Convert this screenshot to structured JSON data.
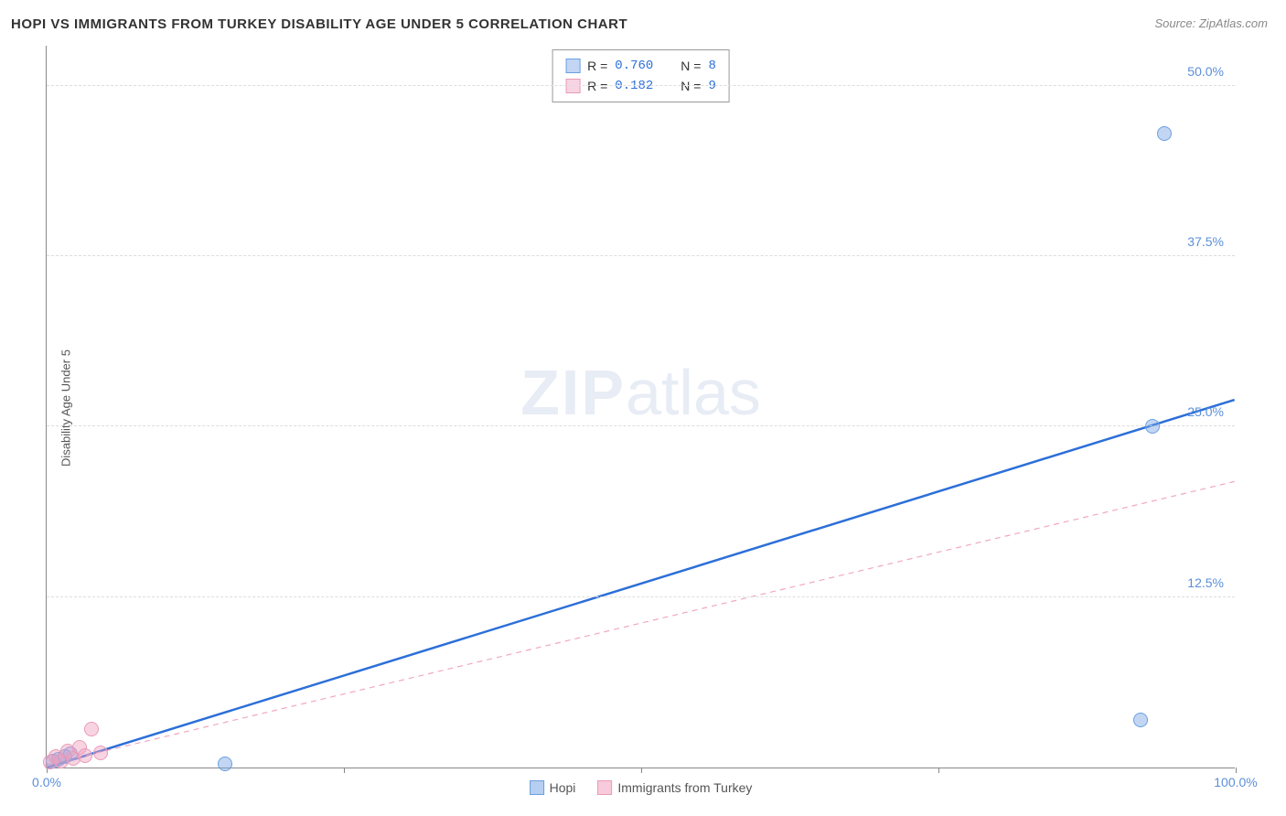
{
  "title": "HOPI VS IMMIGRANTS FROM TURKEY DISABILITY AGE UNDER 5 CORRELATION CHART",
  "source_prefix": "Source: ",
  "source_name": "ZipAtlas.com",
  "ylabel": "Disability Age Under 5",
  "watermark_bold": "ZIP",
  "watermark_light": "atlas",
  "chart": {
    "type": "scatter",
    "xlim": [
      0,
      100
    ],
    "ylim": [
      0,
      53
    ],
    "x_ticks": [
      0,
      25,
      50,
      75,
      100
    ],
    "x_tick_labels": {
      "0": "0.0%",
      "100": "100.0%"
    },
    "y_ticks": [
      12.5,
      25.0,
      37.5,
      50.0
    ],
    "y_tick_labels": [
      "12.5%",
      "25.0%",
      "37.5%",
      "50.0%"
    ],
    "tick_color": "#5b8fd9",
    "grid_color": "#dddddd",
    "background_color": "#ffffff",
    "point_radius": 8,
    "series": [
      {
        "name": "Hopi",
        "color_fill": "rgba(120,165,230,0.45)",
        "color_stroke": "#6b9fe0",
        "r_label": "R = ",
        "r_value": "0.760",
        "n_label": "N = ",
        "n_value": "8",
        "trend": {
          "x1": 0,
          "y1": 0,
          "x2": 100,
          "y2": 27.0,
          "stroke": "#2c6fd8",
          "width": 2.5,
          "dash": ""
        },
        "points": [
          {
            "x": 0.5,
            "y": 0.5
          },
          {
            "x": 1.0,
            "y": 0.6
          },
          {
            "x": 1.5,
            "y": 0.8
          },
          {
            "x": 2.0,
            "y": 1.0
          },
          {
            "x": 15.0,
            "y": 0.3
          },
          {
            "x": 92.0,
            "y": 3.5
          },
          {
            "x": 93.0,
            "y": 25.0
          },
          {
            "x": 94.0,
            "y": 46.5
          }
        ]
      },
      {
        "name": "Immigrants from Turkey",
        "color_fill": "rgba(240,160,190,0.45)",
        "color_stroke": "#e89bb8",
        "r_label": "R = ",
        "r_value": "0.182",
        "n_label": "N = ",
        "n_value": "9",
        "trend": {
          "x1": 0,
          "y1": 0.2,
          "x2": 100,
          "y2": 21.0,
          "stroke": "#f0a8c0",
          "width": 1.2,
          "dash": "6,5"
        },
        "points": [
          {
            "x": 0.3,
            "y": 0.4
          },
          {
            "x": 0.8,
            "y": 0.8
          },
          {
            "x": 1.2,
            "y": 0.5
          },
          {
            "x": 1.8,
            "y": 1.2
          },
          {
            "x": 2.2,
            "y": 0.7
          },
          {
            "x": 2.8,
            "y": 1.5
          },
          {
            "x": 3.2,
            "y": 0.9
          },
          {
            "x": 3.8,
            "y": 2.8
          },
          {
            "x": 4.5,
            "y": 1.1
          }
        ]
      }
    ]
  },
  "legend_bottom": [
    {
      "label": "Hopi",
      "fill": "rgba(120,165,230,0.55)",
      "stroke": "#6b9fe0"
    },
    {
      "label": "Immigrants from Turkey",
      "fill": "rgba(240,160,190,0.55)",
      "stroke": "#e89bb8"
    }
  ]
}
